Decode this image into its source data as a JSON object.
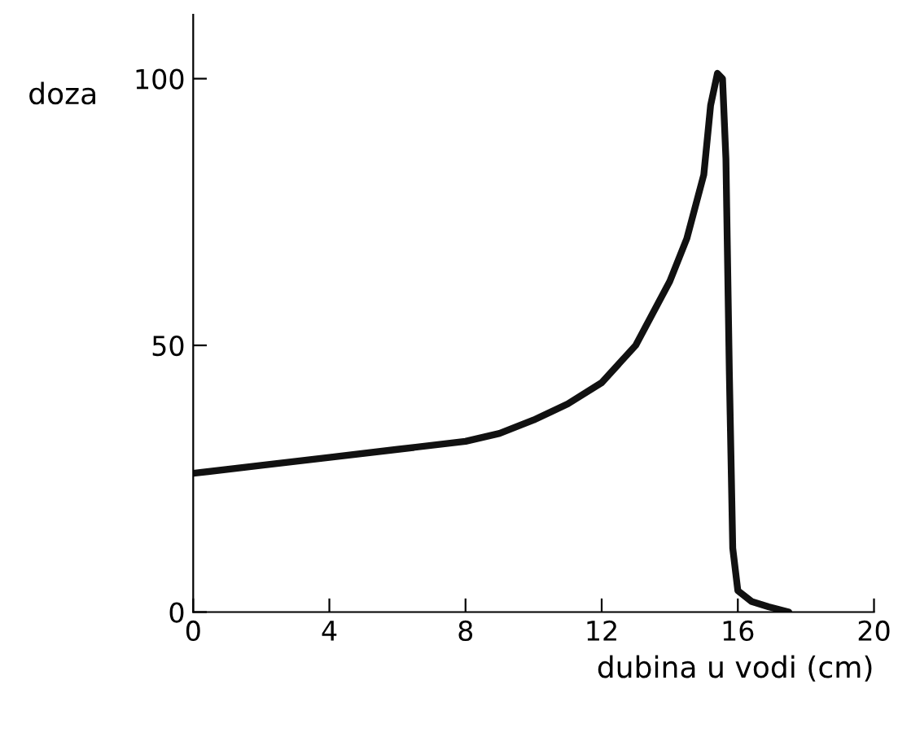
{
  "chart_data": {
    "type": "line",
    "xlabel": "dubina u vodi (cm)",
    "ylabel": "doza",
    "x": [
      0,
      2,
      4,
      6,
      8,
      9,
      10,
      11,
      12,
      13,
      14,
      14.5,
      15,
      15.2,
      15.4,
      15.55,
      15.65,
      15.75,
      15.85,
      16,
      16.4,
      16.9,
      17.5
    ],
    "series": [
      {
        "color": "#111111",
        "values": [
          26,
          27.5,
          29,
          30.5,
          32,
          33.5,
          36,
          39,
          43,
          50,
          62,
          70,
          82,
          95,
          101,
          100,
          85,
          45,
          12,
          4,
          2,
          1,
          0
        ]
      }
    ],
    "xlim": [
      0,
      20
    ],
    "xticks": [
      0,
      4,
      8,
      12,
      16,
      20
    ],
    "ylim": [
      0,
      112
    ],
    "yticks": [
      0,
      50,
      100
    ],
    "grid": false,
    "legend": false,
    "marker": "none",
    "line_style": "solid"
  }
}
